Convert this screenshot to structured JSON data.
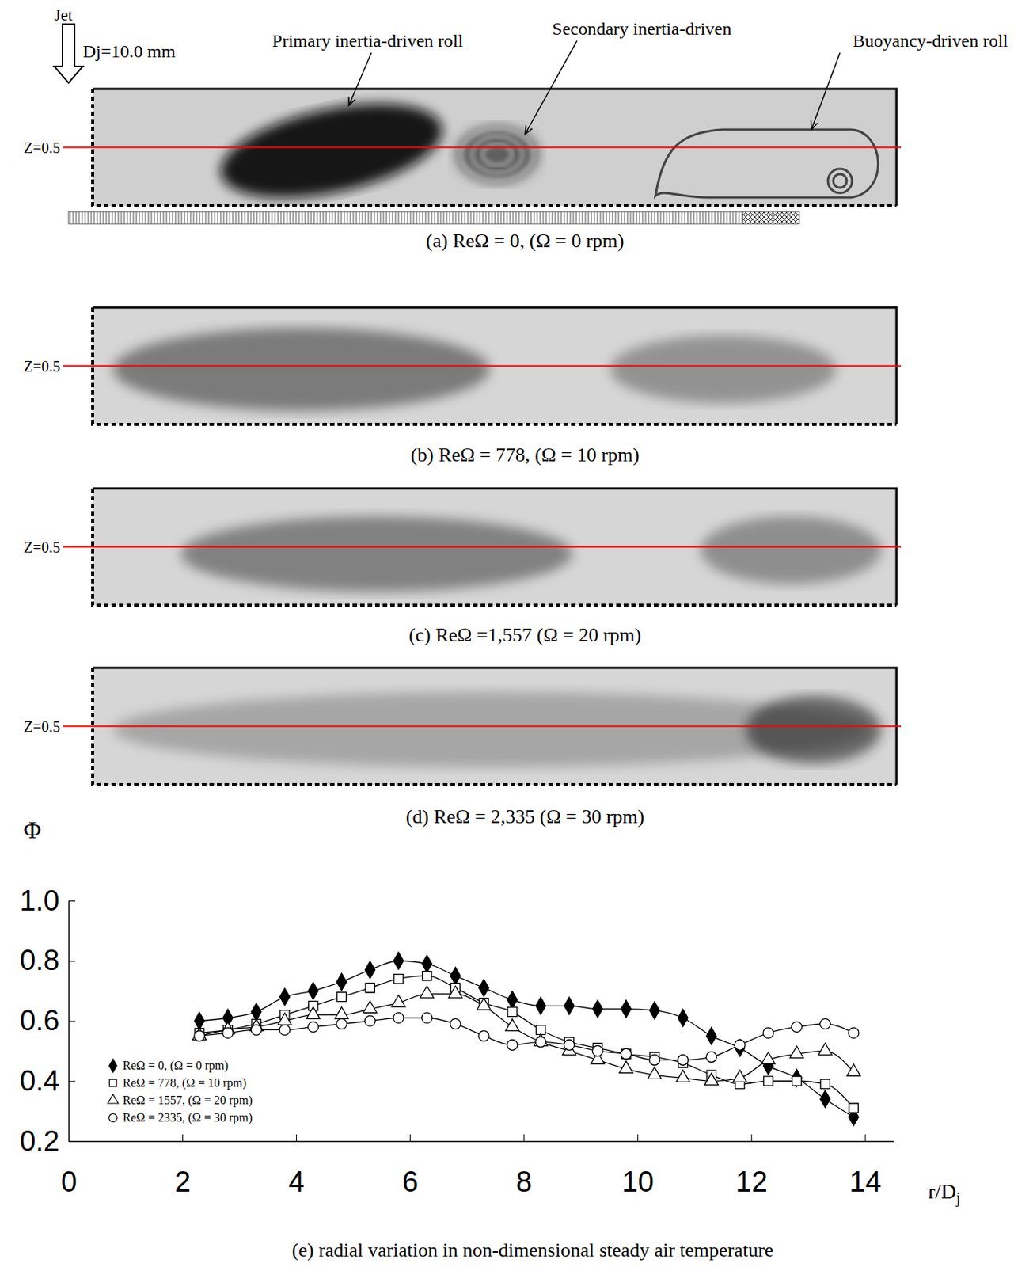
{
  "flow_visualization": {
    "jet_label": "Jet",
    "jet_diameter": "Dj=10.0 mm",
    "roll_labels": [
      "Primary inertia-driven roll",
      "Secondary inertia-driven",
      "Buoyancy-driven roll"
    ],
    "panels": [
      {
        "caption": "(a)  ReΩ = 0,  (Ω = 0 rpm)",
        "line_label": "Z=0.5"
      },
      {
        "caption": "(b) ReΩ = 778,  (Ω = 10 rpm)",
        "line_label": "Z=0.5"
      },
      {
        "caption": "(c) ReΩ =1,557 (Ω = 20 rpm)",
        "line_label": "Z=0.5"
      },
      {
        "caption": "(d) ReΩ = 2,335 (Ω = 30 rpm)",
        "line_label": "Z=0.5"
      }
    ]
  },
  "chart_data": {
    "type": "line",
    "title": "(e) radial variation in non-dimensional steady air temperature",
    "x_label": "r/Dj",
    "y_label": "Φ",
    "x": [
      2.3,
      2.8,
      3.3,
      3.8,
      4.3,
      4.8,
      5.3,
      5.8,
      6.3,
      6.8,
      7.3,
      7.8,
      8.3,
      8.8,
      9.3,
      9.8,
      10.3,
      10.8,
      11.3,
      11.8,
      12.3,
      12.8,
      13.3,
      13.8
    ],
    "series": [
      {
        "name": "ReΩ = 0,  (Ω = 0 rpm)",
        "color": "#000000",
        "marker": "filled-diamond",
        "line_style": "solid",
        "values": [
          0.6,
          0.61,
          0.63,
          0.68,
          0.7,
          0.73,
          0.77,
          0.8,
          0.79,
          0.75,
          0.71,
          0.67,
          0.65,
          0.65,
          0.64,
          0.64,
          0.635,
          0.61,
          0.55,
          0.51,
          0.45,
          0.41,
          0.34,
          0.28
        ]
      },
      {
        "name": "ReΩ = 778,  (Ω = 10 rpm)",
        "color": "#000000",
        "marker": "open-square",
        "line_style": "solid",
        "values": [
          0.56,
          0.57,
          0.59,
          0.62,
          0.65,
          0.68,
          0.71,
          0.74,
          0.75,
          0.71,
          0.66,
          0.63,
          0.57,
          0.53,
          0.51,
          0.49,
          0.48,
          0.46,
          0.42,
          0.39,
          0.4,
          0.4,
          0.39,
          0.31
        ]
      },
      {
        "name": "ReΩ = 1557,  (Ω = 20 rpm)",
        "color": "#000000",
        "marker": "open-triangle",
        "line_style": "solid",
        "values": [
          0.55,
          0.57,
          0.58,
          0.6,
          0.62,
          0.62,
          0.64,
          0.66,
          0.69,
          0.69,
          0.65,
          0.58,
          0.53,
          0.5,
          0.47,
          0.44,
          0.42,
          0.41,
          0.4,
          0.41,
          0.47,
          0.49,
          0.5,
          0.43
        ]
      },
      {
        "name": "ReΩ = 2335,  (Ω = 30 rpm)",
        "color": "#000000",
        "marker": "open-circle",
        "line_style": "solid",
        "values": [
          0.55,
          0.56,
          0.57,
          0.57,
          0.58,
          0.59,
          0.6,
          0.61,
          0.61,
          0.59,
          0.55,
          0.52,
          0.53,
          0.52,
          0.5,
          0.49,
          0.47,
          0.47,
          0.48,
          0.52,
          0.56,
          0.58,
          0.59,
          0.56
        ]
      }
    ],
    "xlim": [
      0,
      14.5
    ],
    "xticks": [
      0,
      2,
      4,
      6,
      8,
      10,
      12,
      14
    ],
    "ylim": [
      0.2,
      1
    ],
    "yticks": [
      0.2,
      0.4,
      0.6,
      0.8,
      {
        "value": 1,
        "label": "1.0"
      }
    ],
    "grid": false,
    "legend": "lower left"
  }
}
